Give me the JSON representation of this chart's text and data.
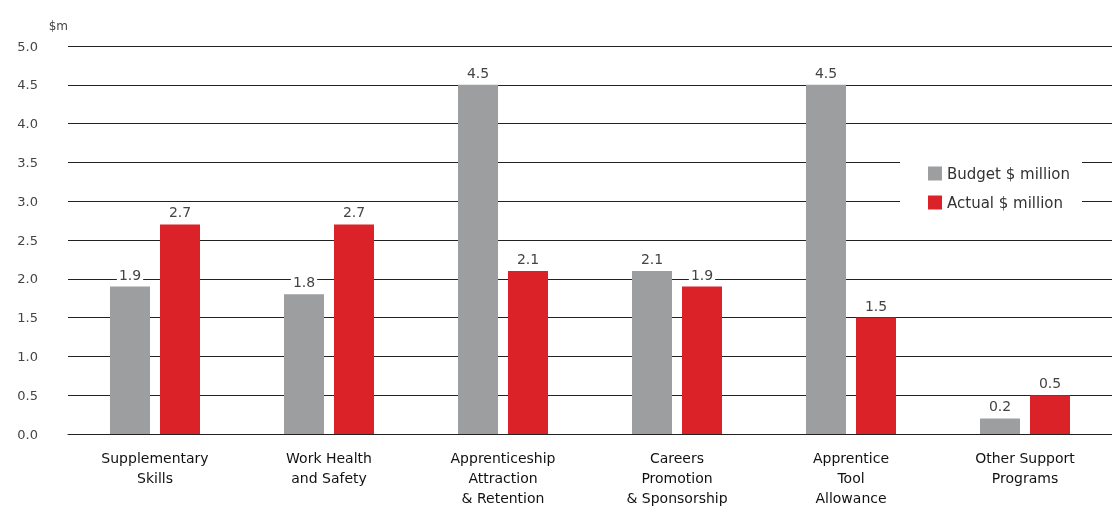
{
  "chart_data": {
    "type": "bar",
    "ylabel": "$m",
    "categories": [
      "Supplementary\nSkills",
      "Work Health\nand Safety",
      "Apprenticeship\nAttraction\n& Retention",
      "Careers\nPromotion\n& Sponsorship",
      "Apprentice\nTool\nAllowance",
      "Other Support\nPrograms"
    ],
    "series": [
      {
        "name": "Budget $ million",
        "color": "#9d9ea0",
        "values": [
          1.9,
          1.8,
          4.5,
          2.1,
          4.5,
          0.2
        ]
      },
      {
        "name": "Actual $ million",
        "color": "#dc2229",
        "values": [
          2.7,
          2.7,
          2.1,
          1.9,
          1.5,
          0.5
        ]
      }
    ],
    "ylim": [
      0,
      5
    ],
    "yticks": [
      "0.0",
      "0.5",
      "1.0",
      "1.5",
      "2.0",
      "2.5",
      "3.0",
      "3.5",
      "4.0",
      "4.5",
      "5.0"
    ],
    "grid": "y",
    "legend": "right",
    "data_labels": true
  }
}
